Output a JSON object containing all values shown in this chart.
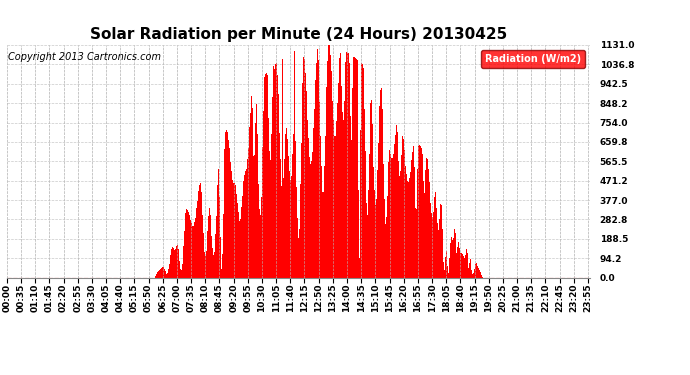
{
  "title": "Solar Radiation per Minute (24 Hours) 20130425",
  "copyright_text": "Copyright 2013 Cartronics.com",
  "legend_label": "Radiation (W/m2)",
  "ytick_values": [
    0.0,
    94.2,
    188.5,
    282.8,
    377.0,
    471.2,
    565.5,
    659.8,
    754.0,
    848.2,
    942.5,
    1036.8,
    1131.0
  ],
  "ymax": 1131.0,
  "bar_color": "#FF0000",
  "legend_bg": "#FF0000",
  "legend_text_color": "#FFFFFF",
  "grid_color": "#BBBBBB",
  "background_color": "#FFFFFF",
  "title_fontsize": 11,
  "copyright_fontsize": 7,
  "tick_fontsize": 6.5,
  "sunrise_min": 365,
  "sunset_min": 1175,
  "peak_min": 790,
  "peak_val": 1131.0
}
